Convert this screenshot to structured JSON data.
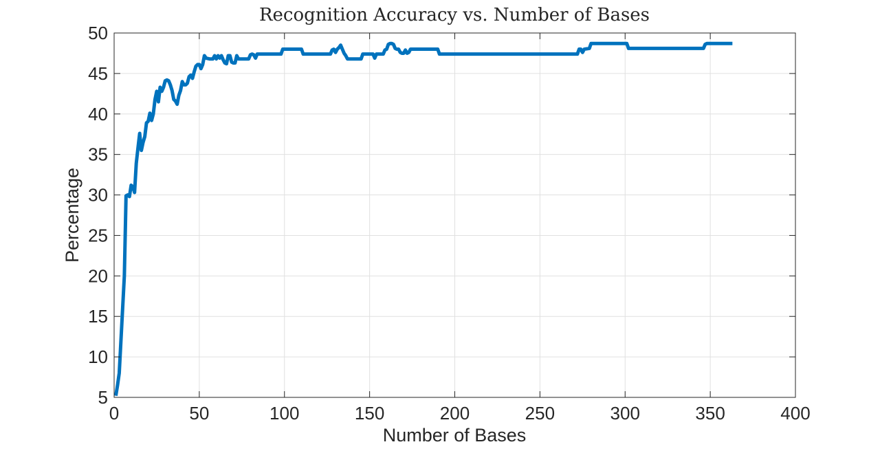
{
  "chart_data": {
    "type": "line",
    "title": "Recognition Accuracy vs. Number of Bases",
    "xlabel": "Number of Bases",
    "ylabel": "Percentage",
    "xlim": [
      0,
      400
    ],
    "ylim": [
      5,
      50
    ],
    "xticks": [
      0,
      50,
      100,
      150,
      200,
      250,
      300,
      350,
      400
    ],
    "yticks": [
      5,
      10,
      15,
      20,
      25,
      30,
      35,
      40,
      45,
      50
    ],
    "grid": true,
    "legend": "none",
    "series": [
      {
        "color": "#0072BD",
        "points": [
          [
            1,
            5.2
          ],
          [
            2,
            6.5
          ],
          [
            3,
            8.0
          ],
          [
            4,
            12.0
          ],
          [
            5,
            16.0
          ],
          [
            6,
            20.0
          ],
          [
            7,
            29.9
          ],
          [
            8,
            30.0
          ],
          [
            9,
            29.8
          ],
          [
            10,
            31.2
          ],
          [
            11,
            31.0
          ],
          [
            12,
            30.3
          ],
          [
            13,
            33.9
          ],
          [
            14,
            35.8
          ],
          [
            15,
            37.6
          ],
          [
            16,
            35.5
          ],
          [
            17,
            36.5
          ],
          [
            18,
            37.2
          ],
          [
            19,
            38.9
          ],
          [
            20,
            39.1
          ],
          [
            21,
            40.1
          ],
          [
            22,
            39.2
          ],
          [
            23,
            40.0
          ],
          [
            24,
            41.8
          ],
          [
            25,
            42.8
          ],
          [
            26,
            41.5
          ],
          [
            27,
            43.3
          ],
          [
            28,
            42.8
          ],
          [
            29,
            43.3
          ],
          [
            30,
            44.1
          ],
          [
            31,
            44.2
          ],
          [
            32,
            44.1
          ],
          [
            33,
            43.6
          ],
          [
            34,
            42.9
          ],
          [
            35,
            41.8
          ],
          [
            36,
            41.6
          ],
          [
            37,
            41.2
          ],
          [
            38,
            42.3
          ],
          [
            39,
            42.9
          ],
          [
            40,
            44.0
          ],
          [
            41,
            43.6
          ],
          [
            42,
            43.6
          ],
          [
            43,
            43.8
          ],
          [
            44,
            44.6
          ],
          [
            45,
            44.8
          ],
          [
            46,
            44.4
          ],
          [
            47,
            45.2
          ],
          [
            48,
            45.9
          ],
          [
            49,
            46.1
          ],
          [
            50,
            46.1
          ],
          [
            51,
            45.6
          ],
          [
            52,
            46.1
          ],
          [
            53,
            47.2
          ],
          [
            54,
            46.9
          ],
          [
            56,
            46.8
          ],
          [
            58,
            46.8
          ],
          [
            59,
            47.2
          ],
          [
            60,
            46.8
          ],
          [
            61,
            47.2
          ],
          [
            62,
            46.9
          ],
          [
            63,
            47.2
          ],
          [
            64,
            46.7
          ],
          [
            65,
            46.3
          ],
          [
            66,
            46.2
          ],
          [
            67,
            47.2
          ],
          [
            68,
            47.2
          ],
          [
            69,
            46.4
          ],
          [
            70,
            46.3
          ],
          [
            71,
            46.3
          ],
          [
            72,
            47.2
          ],
          [
            73,
            46.8
          ],
          [
            76,
            46.8
          ],
          [
            79,
            46.8
          ],
          [
            80,
            47.3
          ],
          [
            81,
            47.4
          ],
          [
            82,
            47.3
          ],
          [
            83,
            46.9
          ],
          [
            84,
            47.4
          ],
          [
            90,
            47.4
          ],
          [
            97,
            47.4
          ],
          [
            98,
            47.4
          ],
          [
            99,
            48.0
          ],
          [
            100,
            48.0
          ],
          [
            107,
            48.0
          ],
          [
            110,
            48.0
          ],
          [
            111,
            47.4
          ],
          [
            115,
            47.4
          ],
          [
            120,
            47.4
          ],
          [
            127,
            47.4
          ],
          [
            128,
            47.9
          ],
          [
            129,
            48.0
          ],
          [
            130,
            47.6
          ],
          [
            131,
            48.0
          ],
          [
            132,
            48.2
          ],
          [
            133,
            48.5
          ],
          [
            134,
            48.0
          ],
          [
            135,
            47.5
          ],
          [
            136,
            47.2
          ],
          [
            137,
            46.8
          ],
          [
            140,
            46.8
          ],
          [
            143,
            46.8
          ],
          [
            145,
            46.8
          ],
          [
            146,
            47.4
          ],
          [
            150,
            47.4
          ],
          [
            152,
            47.4
          ],
          [
            153,
            46.9
          ],
          [
            154,
            47.4
          ],
          [
            157,
            47.4
          ],
          [
            158,
            47.4
          ],
          [
            159,
            47.9
          ],
          [
            160,
            48.0
          ],
          [
            161,
            48.6
          ],
          [
            162,
            48.7
          ],
          [
            163,
            48.7
          ],
          [
            164,
            48.6
          ],
          [
            165,
            48.1
          ],
          [
            166,
            48.0
          ],
          [
            167,
            48.0
          ],
          [
            168,
            47.6
          ],
          [
            169,
            47.5
          ],
          [
            170,
            47.5
          ],
          [
            171,
            47.9
          ],
          [
            172,
            47.5
          ],
          [
            173,
            47.6
          ],
          [
            174,
            48.0
          ],
          [
            180,
            48.0
          ],
          [
            185,
            48.0
          ],
          [
            190,
            48.0
          ],
          [
            191,
            47.4
          ],
          [
            200,
            47.4
          ],
          [
            220,
            47.4
          ],
          [
            240,
            47.4
          ],
          [
            260,
            47.4
          ],
          [
            270,
            47.4
          ],
          [
            272,
            47.4
          ],
          [
            273,
            48.0
          ],
          [
            274,
            48.0
          ],
          [
            275,
            47.6
          ],
          [
            276,
            48.0
          ],
          [
            279,
            48.1
          ],
          [
            280,
            48.7
          ],
          [
            285,
            48.7
          ],
          [
            290,
            48.7
          ],
          [
            300,
            48.7
          ],
          [
            301,
            48.7
          ],
          [
            302,
            48.1
          ],
          [
            310,
            48.1
          ],
          [
            320,
            48.1
          ],
          [
            330,
            48.1
          ],
          [
            340,
            48.1
          ],
          [
            346,
            48.1
          ],
          [
            347,
            48.6
          ],
          [
            348,
            48.7
          ],
          [
            355,
            48.7
          ],
          [
            360,
            48.7
          ],
          [
            363,
            48.7
          ]
        ]
      }
    ]
  }
}
